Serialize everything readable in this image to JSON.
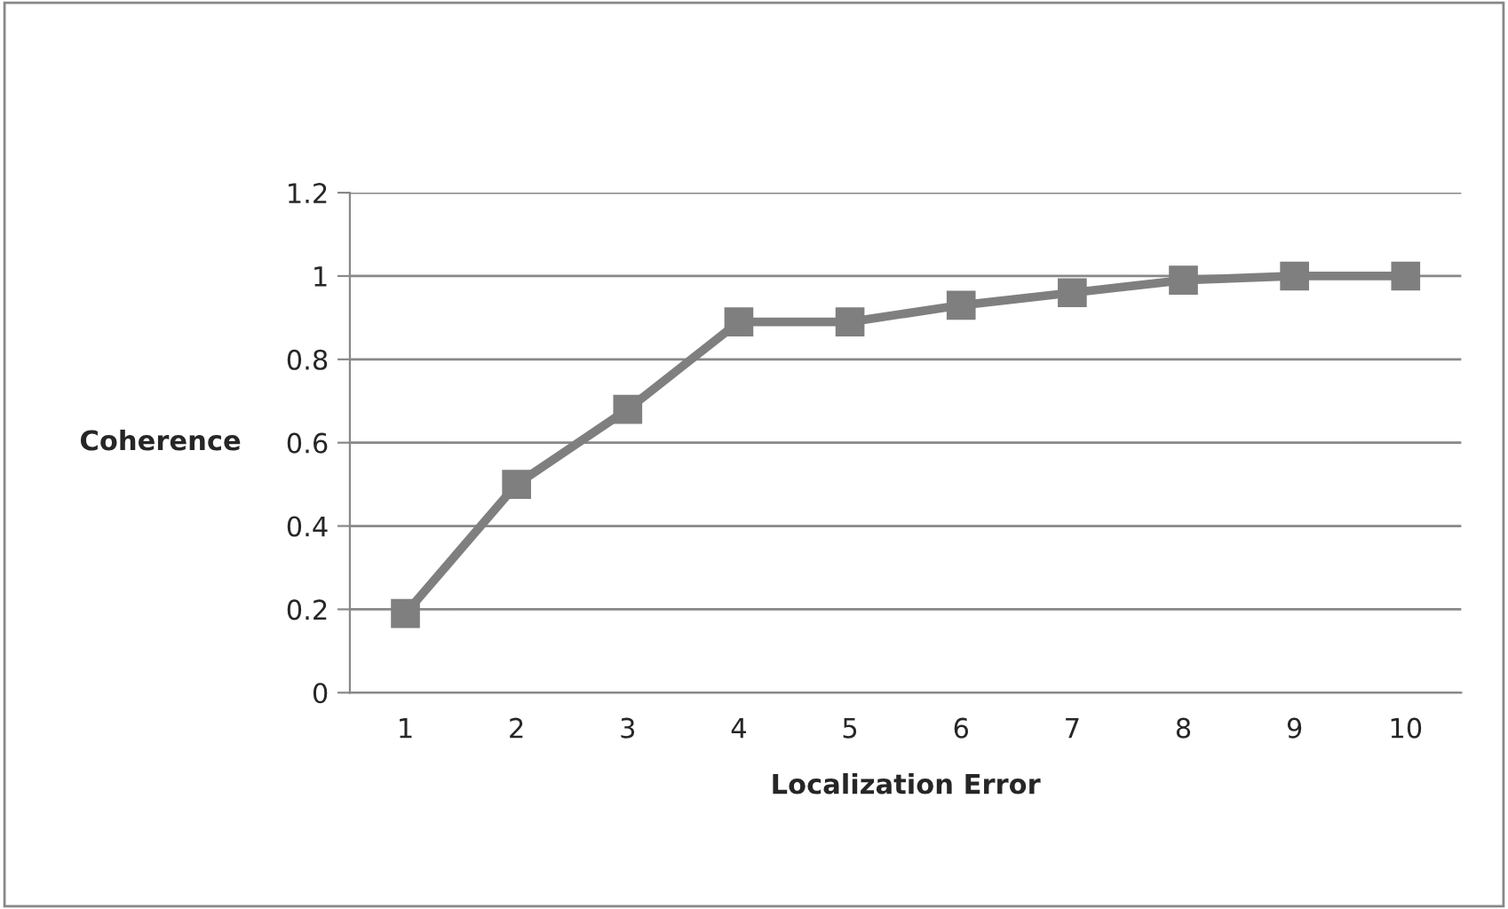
{
  "chart_data": {
    "type": "line",
    "xlabel": "Localization Error",
    "ylabel": "Coherence",
    "categories": [
      "1",
      "2",
      "3",
      "4",
      "5",
      "6",
      "7",
      "8",
      "9",
      "10"
    ],
    "series": [
      {
        "color": "#7f7f7f",
        "values": [
          0.19,
          0.5,
          0.68,
          0.89,
          0.89,
          0.93,
          0.96,
          0.99,
          1.0,
          1.0
        ]
      }
    ],
    "ylim": [
      0,
      1.2
    ],
    "yticks": [
      0,
      0.2,
      0.4,
      0.6,
      0.8,
      1,
      1.2
    ],
    "grid": "y",
    "marker": "square",
    "line_style": "solid"
  }
}
